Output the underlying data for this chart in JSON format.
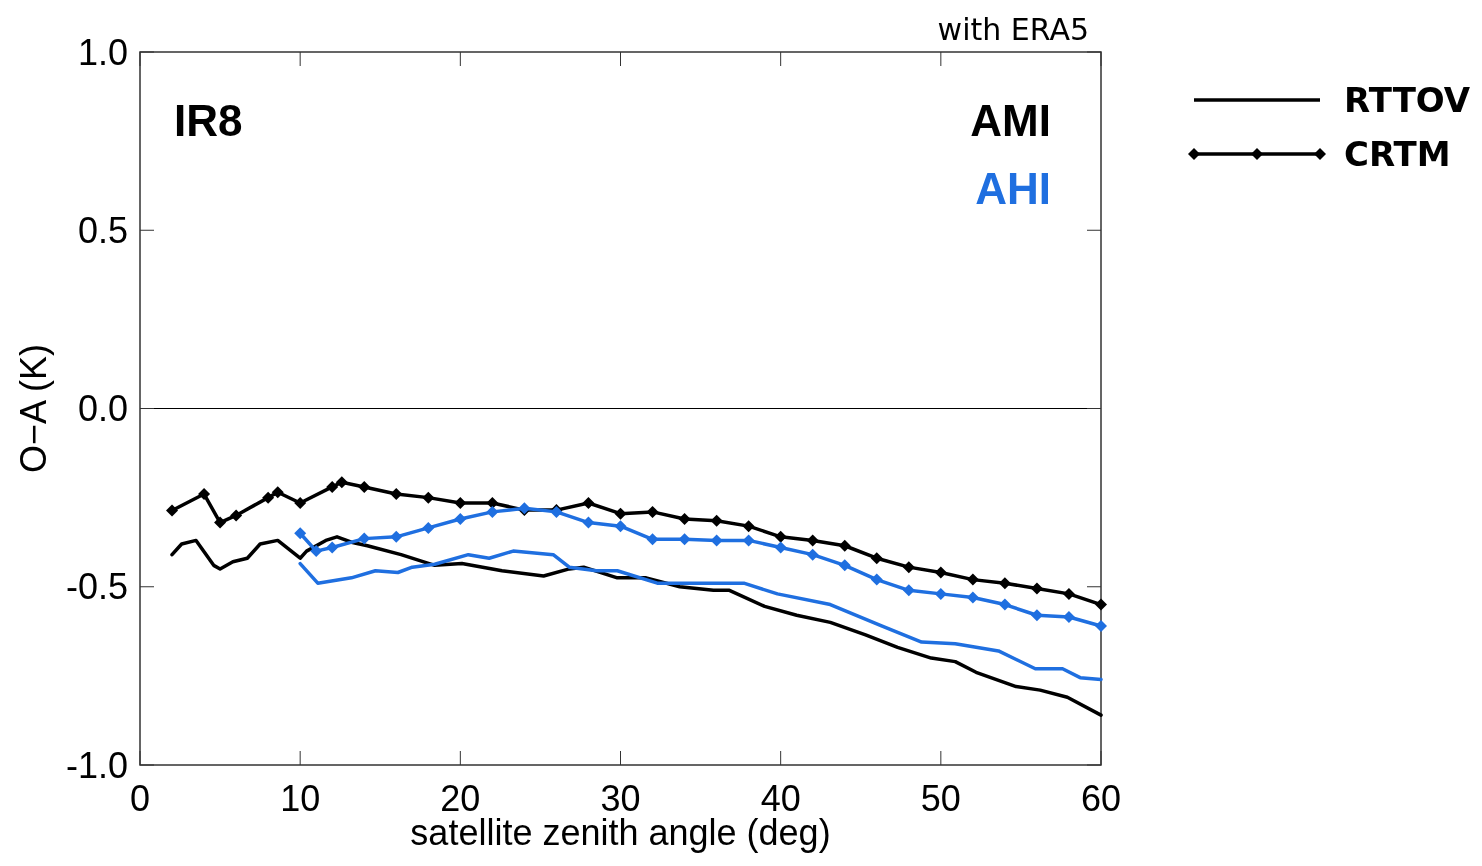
{
  "chart_data": {
    "type": "line",
    "xlabel": "satellite zenith angle (deg)",
    "ylabel": "O−A (K)",
    "xlim": [
      0,
      60
    ],
    "xticks": [
      0,
      10,
      20,
      30,
      40,
      50,
      60
    ],
    "ylim": [
      -1,
      1
    ],
    "yticks": [
      {
        "value": -1,
        "label": "-1.0"
      },
      {
        "value": -0.5,
        "label": "-0.5"
      },
      {
        "value": 0,
        "label": "0.0"
      },
      {
        "value": 0.5,
        "label": "0.5"
      },
      {
        "value": 1,
        "label": "1.0"
      }
    ],
    "grid": false,
    "legend": "right",
    "annotations": [
      "with ERA5",
      "IR8",
      "AMI",
      "AHI"
    ],
    "ref_lines": [
      {
        "axis": "y",
        "value": 0,
        "color": "#000000"
      }
    ],
    "series": [
      {
        "name": "RTTOV",
        "color": "#000000",
        "marker": "none",
        "x": [
          2,
          2.6,
          3.5,
          4.6,
          5,
          5.8,
          6.7,
          7.5,
          8.6,
          10,
          10.4,
          11.6,
          12.3,
          13.2,
          14.2,
          16.3,
          18.4,
          20.1,
          22.6,
          25.2,
          26.8,
          27.7,
          29.8,
          31.6,
          33.7,
          35.8,
          36.8,
          39,
          41,
          43.1,
          45.3,
          47.3,
          49.4,
          50.9,
          52.2,
          54.7,
          56.2,
          57.9,
          60
        ],
        "values": [
          -0.41,
          -0.38,
          -0.37,
          -0.44,
          -0.45,
          -0.43,
          -0.42,
          -0.38,
          -0.37,
          -0.42,
          -0.4,
          -0.37,
          -0.36,
          -0.375,
          -0.385,
          -0.41,
          -0.44,
          -0.435,
          -0.455,
          -0.47,
          -0.45,
          -0.445,
          -0.475,
          -0.475,
          -0.5,
          -0.51,
          -0.51,
          -0.555,
          -0.58,
          -0.6,
          -0.635,
          -0.67,
          -0.7,
          -0.71,
          -0.74,
          -0.78,
          -0.79,
          -0.81,
          -0.86
        ]
      },
      {
        "name": "CRTM",
        "color": "#000000",
        "marker": "diamond",
        "x": [
          2,
          4,
          5,
          6,
          8,
          8.6,
          10,
          12,
          12.6,
          14,
          16,
          18,
          20,
          22,
          24,
          26,
          28,
          30,
          32,
          34,
          36,
          38,
          40,
          42,
          44,
          46,
          48,
          50,
          52,
          54,
          56,
          58,
          60
        ],
        "values": [
          -0.286,
          -0.24,
          -0.32,
          -0.3,
          -0.25,
          -0.235,
          -0.265,
          -0.22,
          -0.207,
          -0.22,
          -0.24,
          -0.25,
          -0.265,
          -0.265,
          -0.285,
          -0.285,
          -0.265,
          -0.295,
          -0.29,
          -0.31,
          -0.315,
          -0.33,
          -0.36,
          -0.37,
          -0.385,
          -0.42,
          -0.445,
          -0.46,
          -0.48,
          -0.49,
          -0.505,
          -0.52,
          -0.55
        ]
      },
      {
        "color": "#1f6fe0",
        "marker": "none",
        "x": [
          10,
          11.1,
          13.2,
          14.7,
          16.1,
          17,
          18.4,
          20.5,
          21.8,
          23.3,
          25.8,
          26.8,
          28.5,
          29.8,
          32.3,
          34.8,
          37.7,
          39.8,
          43.1,
          46.3,
          48.8,
          50.9,
          53.6,
          55.9,
          57.6,
          58.7,
          60
        ],
        "values": [
          -0.435,
          -0.49,
          -0.475,
          -0.455,
          -0.46,
          -0.445,
          -0.437,
          -0.41,
          -0.42,
          -0.4,
          -0.41,
          -0.445,
          -0.455,
          -0.455,
          -0.49,
          -0.49,
          -0.49,
          -0.52,
          -0.55,
          -0.61,
          -0.655,
          -0.66,
          -0.68,
          -0.73,
          -0.73,
          -0.755,
          -0.76
        ]
      },
      {
        "color": "#1f6fe0",
        "marker": "diamond",
        "x": [
          10,
          11,
          12,
          14,
          16,
          18,
          20,
          22,
          24,
          26,
          28,
          30,
          32,
          34,
          36,
          38,
          40,
          42,
          44,
          46,
          48,
          50,
          52,
          54,
          56,
          58,
          60
        ],
        "values": [
          -0.35,
          -0.4,
          -0.39,
          -0.365,
          -0.36,
          -0.335,
          -0.31,
          -0.29,
          -0.28,
          -0.29,
          -0.32,
          -0.33,
          -0.367,
          -0.367,
          -0.37,
          -0.37,
          -0.39,
          -0.41,
          -0.44,
          -0.48,
          -0.51,
          -0.52,
          -0.53,
          -0.55,
          -0.58,
          -0.585,
          -0.61
        ]
      }
    ]
  }
}
